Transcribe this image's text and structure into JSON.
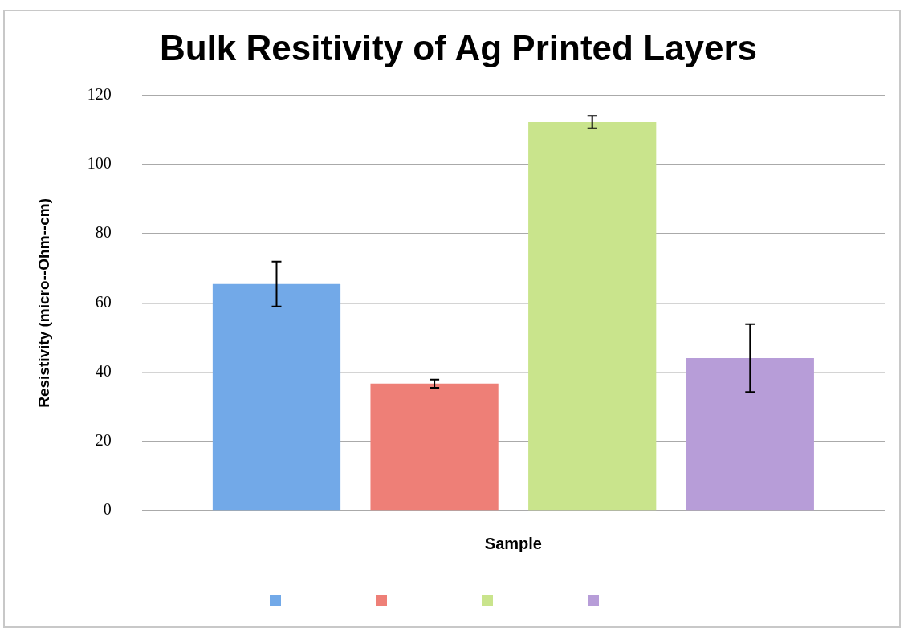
{
  "chart_data": {
    "type": "bar",
    "title": "Bulk Resitivity of Ag Printed Layers",
    "xlabel": "Sample",
    "ylabel": "Resistivity (micro--Ohm--cm)",
    "categories": [
      null
    ],
    "series": [
      {
        "color": "#72a9e8",
        "values": [
          65.5
        ],
        "errors": [
          6.5
        ]
      },
      {
        "color": "#ee7f77",
        "values": [
          36.7
        ],
        "errors": [
          1.2
        ]
      },
      {
        "color": "#c9e48c",
        "values": [
          112.3
        ],
        "errors": [
          1.8
        ]
      },
      {
        "color": "#b79dd8",
        "values": [
          44.1
        ],
        "errors": [
          9.8
        ]
      }
    ],
    "ylim": [
      0,
      120
    ],
    "yticks": [
      0,
      20,
      40,
      60,
      80,
      100,
      120
    ],
    "grid": "y"
  }
}
